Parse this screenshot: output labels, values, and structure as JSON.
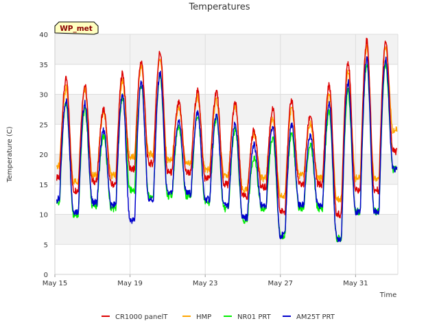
{
  "chart_data": {
    "type": "line",
    "title": "Temperatures",
    "xlabel": "Time",
    "ylabel": "Temperature (C)",
    "badge": "WP_met",
    "ylim": [
      0,
      40
    ],
    "yticks": [
      0,
      5,
      10,
      15,
      20,
      25,
      30,
      35,
      40
    ],
    "xlim": [
      "May 15",
      "Jun 2 06:00"
    ],
    "xticks": [
      {
        "label": "May 15",
        "day": 0
      },
      {
        "label": "May 19",
        "day": 4
      },
      {
        "label": "May 23",
        "day": 8
      },
      {
        "label": "May 27",
        "day": 12
      },
      {
        "label": "May 31",
        "day": 16
      }
    ],
    "grid": true,
    "legend_position": "bottom",
    "colors": {
      "CR1000 panelT": "#dd0000",
      "HMP": "#ffa500",
      "NR01 PRT": "#00ee00",
      "AM25T PRT": "#0000cc"
    },
    "daily_extremes": {
      "days": [
        "May 15",
        "May 16",
        "May 17",
        "May 18",
        "May 19",
        "May 20",
        "May 21",
        "May 22",
        "May 23",
        "May 24",
        "May 25",
        "May 26",
        "May 27",
        "May 28",
        "May 29",
        "May 30",
        "May 31",
        "Jun 1",
        "Jun 2"
      ],
      "series": [
        {
          "name": "CR1000 panelT",
          "min": [
            16.0,
            14.0,
            15.5,
            15.0,
            17.5,
            18.5,
            17.0,
            17.0,
            16.0,
            15.0,
            13.0,
            14.5,
            10.5,
            15.0,
            15.0,
            10.0,
            14.0,
            14.0,
            20.5
          ],
          "max": [
            32.5,
            31.5,
            27.5,
            33.5,
            35.5,
            37.0,
            28.5,
            30.5,
            30.5,
            28.5,
            24.0,
            27.5,
            29.0,
            26.5,
            31.5,
            35.5,
            39.0,
            39.0,
            null
          ]
        },
        {
          "name": "HMP",
          "min": [
            18.0,
            15.5,
            16.5,
            16.5,
            19.5,
            20.0,
            19.0,
            18.5,
            17.5,
            16.5,
            14.0,
            16.0,
            13.0,
            16.5,
            16.0,
            12.5,
            16.0,
            16.0,
            24.0
          ],
          "max": [
            31.0,
            31.0,
            27.0,
            32.0,
            34.5,
            36.0,
            27.5,
            29.5,
            29.0,
            28.0,
            23.5,
            26.0,
            27.5,
            25.0,
            30.0,
            34.0,
            38.0,
            38.0,
            null
          ]
        },
        {
          "name": "NR01 PRT",
          "min": [
            12.0,
            10.0,
            11.5,
            11.0,
            14.0,
            13.0,
            13.0,
            13.0,
            12.0,
            11.0,
            9.0,
            11.0,
            6.5,
            11.0,
            11.0,
            6.0,
            10.5,
            10.5,
            17.5
          ],
          "max": [
            28.5,
            27.5,
            23.0,
            29.5,
            31.5,
            33.0,
            24.5,
            26.5,
            26.0,
            24.0,
            19.5,
            22.5,
            23.5,
            21.5,
            27.0,
            30.5,
            35.0,
            35.0,
            null
          ]
        },
        {
          "name": "AM25T PRT",
          "min": [
            12.5,
            10.5,
            12.0,
            11.5,
            9.0,
            12.5,
            13.5,
            13.5,
            12.5,
            11.5,
            9.5,
            11.5,
            6.5,
            11.5,
            11.5,
            6.0,
            10.5,
            10.5,
            17.5
          ],
          "max": [
            29.0,
            28.5,
            24.0,
            30.0,
            32.0,
            33.5,
            25.5,
            27.0,
            26.5,
            25.0,
            21.5,
            24.5,
            25.0,
            23.0,
            28.5,
            32.0,
            36.0,
            36.0,
            null
          ]
        }
      ]
    }
  }
}
